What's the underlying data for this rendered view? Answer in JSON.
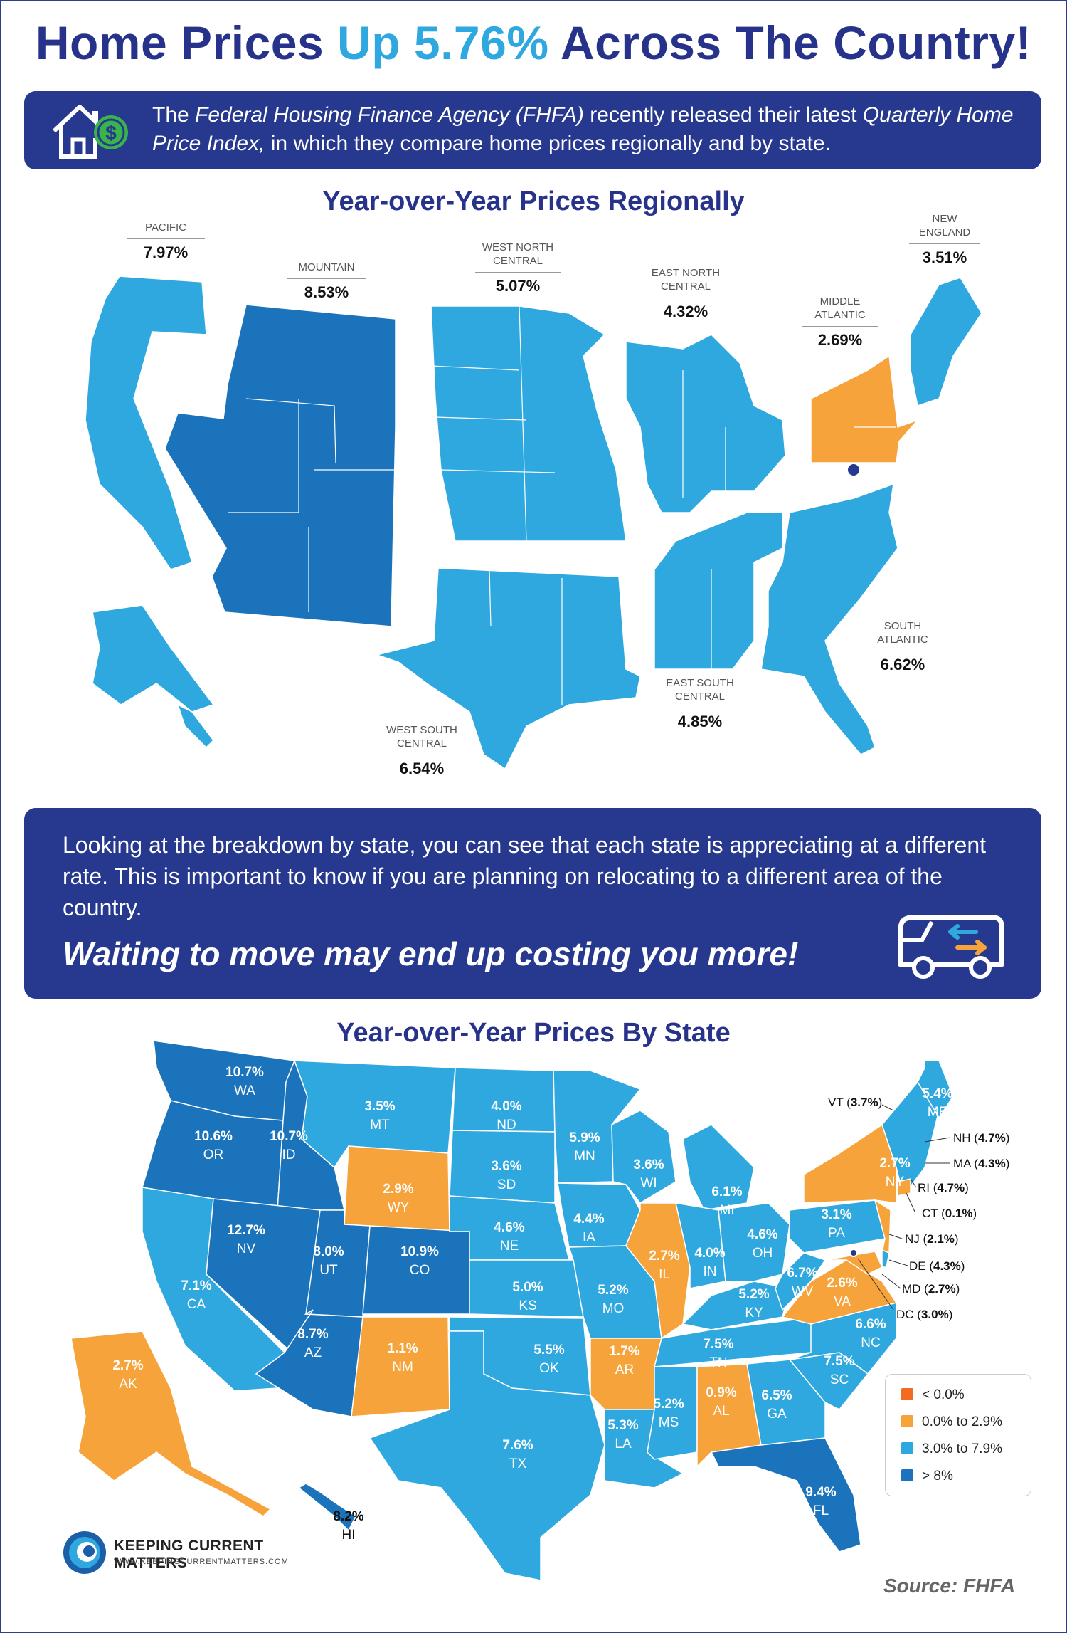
{
  "header": {
    "title_part1": "Home Prices ",
    "title_highlight": "Up 5.76%",
    "title_part2": " Across The Country!"
  },
  "intro": {
    "icon": "house-dollar-icon",
    "text_part1": "The ",
    "text_italic1": "Federal Housing Finance Agency (FHFA)",
    "text_part2": " recently released their latest ",
    "text_italic2": "Quarterly Home Price Index,",
    "text_part3": " in which they compare home prices regionally and by state."
  },
  "regional_map": {
    "title": "Year-over-Year Prices Regionally",
    "regions": [
      {
        "name": "PACIFIC",
        "value": "7.97%"
      },
      {
        "name": "MOUNTAIN",
        "value": "8.53%"
      },
      {
        "name": "WEST NORTH CENTRAL",
        "value": "5.07%"
      },
      {
        "name": "EAST NORTH CENTRAL",
        "value": "4.32%"
      },
      {
        "name": "MIDDLE ATLANTIC",
        "value": "2.69%"
      },
      {
        "name": "NEW ENGLAND",
        "value": "3.51%"
      },
      {
        "name": "SOUTH ATLANTIC",
        "value": "6.62%"
      },
      {
        "name": "EAST SOUTH CENTRAL",
        "value": "4.85%"
      },
      {
        "name": "WEST SOUTH CENTRAL",
        "value": "6.54%"
      }
    ]
  },
  "callout": {
    "text": "Looking at the breakdown by state, you can see that each state is appreciating at a different rate. This is important to know if you are planning on relocating to a different area of the country.",
    "cta": "Waiting to move may end up costing you more!",
    "icon": "moving-van-icon"
  },
  "state_map": {
    "title": "Year-over-Year Prices By State",
    "states": [
      {
        "abbr": "WA",
        "value": "10.7%"
      },
      {
        "abbr": "OR",
        "value": "10.6%"
      },
      {
        "abbr": "ID",
        "value": "10.7%"
      },
      {
        "abbr": "MT",
        "value": "3.5%"
      },
      {
        "abbr": "ND",
        "value": "4.0%"
      },
      {
        "abbr": "MN",
        "value": "5.9%"
      },
      {
        "abbr": "WI",
        "value": "3.6%"
      },
      {
        "abbr": "MI",
        "value": "6.1%"
      },
      {
        "abbr": "SD",
        "value": "3.6%"
      },
      {
        "abbr": "WY",
        "value": "2.9%"
      },
      {
        "abbr": "NV",
        "value": "12.7%"
      },
      {
        "abbr": "UT",
        "value": "8.0%"
      },
      {
        "abbr": "CO",
        "value": "10.9%"
      },
      {
        "abbr": "NE",
        "value": "4.6%"
      },
      {
        "abbr": "IA",
        "value": "4.4%"
      },
      {
        "abbr": "IL",
        "value": "2.7%"
      },
      {
        "abbr": "IN",
        "value": "4.0%"
      },
      {
        "abbr": "OH",
        "value": "4.6%"
      },
      {
        "abbr": "PA",
        "value": "3.1%"
      },
      {
        "abbr": "NY",
        "value": "2.7%"
      },
      {
        "abbr": "ME",
        "value": "5.4%"
      },
      {
        "abbr": "CA",
        "value": "7.1%"
      },
      {
        "abbr": "KS",
        "value": "5.0%"
      },
      {
        "abbr": "MO",
        "value": "5.2%"
      },
      {
        "abbr": "KY",
        "value": "5.2%"
      },
      {
        "abbr": "WV",
        "value": "6.7%"
      },
      {
        "abbr": "VA",
        "value": "2.6%"
      },
      {
        "abbr": "AZ",
        "value": "8.7%"
      },
      {
        "abbr": "NM",
        "value": "1.1%"
      },
      {
        "abbr": "OK",
        "value": "5.5%"
      },
      {
        "abbr": "AR",
        "value": "1.7%"
      },
      {
        "abbr": "TN",
        "value": "7.5%"
      },
      {
        "abbr": "NC",
        "value": "6.6%"
      },
      {
        "abbr": "SC",
        "value": "7.5%"
      },
      {
        "abbr": "TX",
        "value": "7.6%"
      },
      {
        "abbr": "LA",
        "value": "5.3%"
      },
      {
        "abbr": "MS",
        "value": "5.2%"
      },
      {
        "abbr": "AL",
        "value": "0.9%"
      },
      {
        "abbr": "GA",
        "value": "6.5%"
      },
      {
        "abbr": "FL",
        "value": "9.4%"
      },
      {
        "abbr": "AK",
        "value": "2.7%"
      },
      {
        "abbr": "HI",
        "value": "8.2%"
      }
    ],
    "callouts": [
      {
        "abbr": "VT",
        "value": "3.7%"
      },
      {
        "abbr": "NH",
        "value": "4.7%"
      },
      {
        "abbr": "MA",
        "value": "4.3%"
      },
      {
        "abbr": "RI",
        "value": "4.7%"
      },
      {
        "abbr": "CT",
        "value": "0.1%"
      },
      {
        "abbr": "NJ",
        "value": "2.1%"
      },
      {
        "abbr": "DE",
        "value": "4.3%"
      },
      {
        "abbr": "MD",
        "value": "2.7%"
      },
      {
        "abbr": "DC",
        "value": "3.0%"
      }
    ],
    "legend": [
      {
        "label": "< 0.0%",
        "color": "#f26b21"
      },
      {
        "label": "0.0% to 2.9%",
        "color": "#f6a33b"
      },
      {
        "label": "3.0% to 7.9%",
        "color": "#2ea8df"
      },
      {
        "label": "> 8%",
        "color": "#1b74bb"
      }
    ]
  },
  "colors": {
    "navy": "#27388f",
    "light_blue": "#2ea8df",
    "dark_blue": "#1b74bb",
    "orange": "#f6a33b"
  },
  "footer": {
    "brand": "KEEPING CURRENT MATTERS",
    "url": "WWW.KEEPINGCURRENTMATTERS.COM",
    "source": "Source: FHFA"
  }
}
